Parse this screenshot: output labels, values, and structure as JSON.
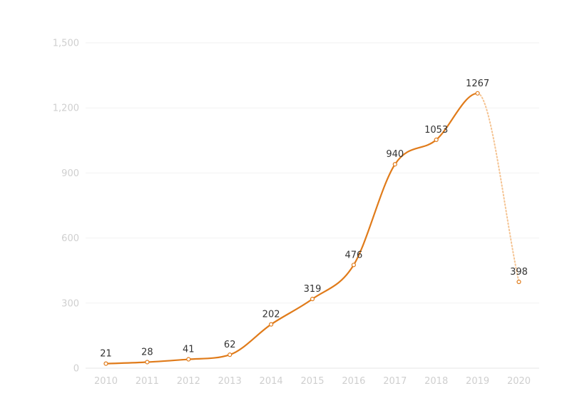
{
  "chart_data": {
    "type": "line",
    "title": "",
    "xlabel": "",
    "ylabel": "",
    "categories": [
      "2010",
      "2011",
      "2012",
      "2013",
      "2014",
      "2015",
      "2016",
      "2017",
      "2018",
      "2019",
      "2020"
    ],
    "series": [
      {
        "values": [
          21,
          28,
          41,
          62,
          202,
          319,
          476,
          940,
          1053,
          1267,
          398
        ],
        "color": "#E07B1A",
        "dotted_last_segment": true
      }
    ],
    "ylim": [
      0,
      1500
    ],
    "yticks": [
      0,
      300,
      600,
      900,
      1200,
      1500
    ],
    "ytick_labels": [
      "0",
      "300",
      "600",
      "900",
      "1,200",
      "1,500"
    ],
    "data_labels": [
      "21",
      "28",
      "41",
      "62",
      "202",
      "319",
      "476",
      "940",
      "1053",
      "1267",
      "398"
    ],
    "grid": true,
    "legend": "none"
  }
}
